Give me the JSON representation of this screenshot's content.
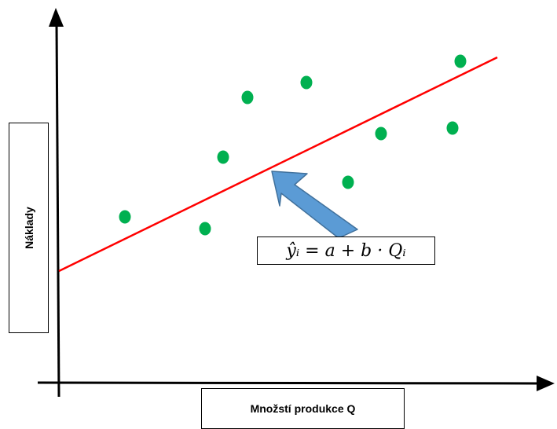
{
  "diagram": {
    "y_axis_label": "Náklady",
    "x_axis_label": "Množstí produkce Q",
    "formula": "ŷᵢ = a + b · Qᵢ",
    "colors": {
      "points": "#00b050",
      "regression_line": "#ff0000",
      "arrow": "#5b9bd5",
      "arrow_border": "#41719c",
      "axes": "#000000"
    }
  }
}
